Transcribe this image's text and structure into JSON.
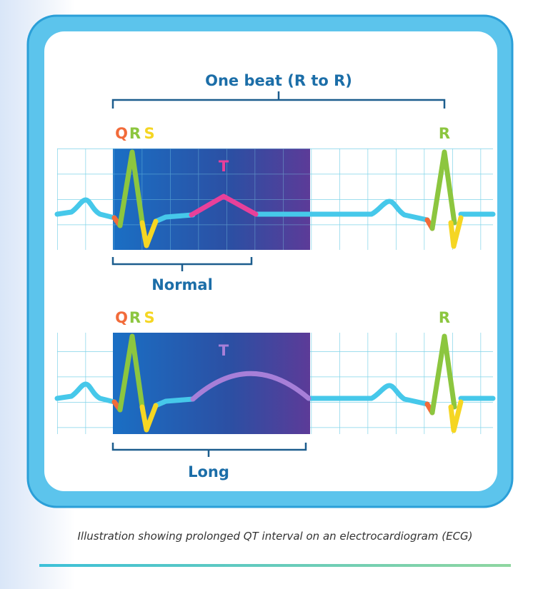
{
  "title": "One beat (R to R)",
  "normal": {
    "q": "Q",
    "r": "R",
    "s": "S",
    "t": "T",
    "next_r": "R",
    "label": "Normal"
  },
  "long": {
    "q": "Q",
    "r": "R",
    "s": "S",
    "t": "T",
    "next_r": "R",
    "label": "Long"
  },
  "caption": "Illustration showing prolonged QT interval on an electrocardiogram (ECG)"
}
